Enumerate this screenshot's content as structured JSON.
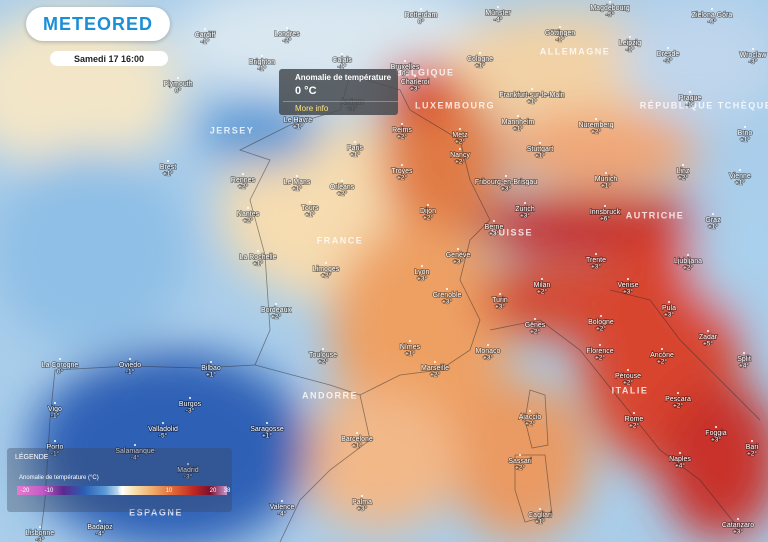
{
  "header": {
    "logo": "METEORED",
    "datetime": "Samedi 17 16:00"
  },
  "tooltip": {
    "title": "Anomalie de température",
    "value": "0 °C",
    "link": "More info"
  },
  "legend": {
    "title": "LÉGENDE",
    "subtitle": "Anomalie de température (°C)",
    "ticks": [
      "-20",
      "-10",
      "0",
      "10",
      "20",
      "38"
    ]
  },
  "countries": [
    "BELGIQUE",
    "LUXEMBOURG",
    "ALLEMAGNE",
    "RÉPUBLIQUE TCHÈQUE",
    "JERSEY",
    "FRANCE",
    "SUISSE",
    "AUTRICHE",
    "ANDORRE",
    "ITALIE",
    "ESPAGNE"
  ],
  "places": [
    {
      "name": "Cardiff",
      "value": "-1°"
    },
    {
      "name": "Londres",
      "value": "-2°"
    },
    {
      "name": "Brighton",
      "value": "-1°"
    },
    {
      "name": "Plymouth",
      "value": "0°"
    },
    {
      "name": "Calais",
      "value": "-1°"
    },
    {
      "name": "Bruxelles",
      "value": "0°"
    },
    {
      "name": "Rotterdam",
      "value": "0°"
    },
    {
      "name": "Münster",
      "value": "-4°"
    },
    {
      "name": "Magdebourg",
      "value": "-5°"
    },
    {
      "name": "Zielona Góra",
      "value": "-6°"
    },
    {
      "name": "Göttingen",
      "value": "-1°"
    },
    {
      "name": "Leipzig",
      "value": "-1°"
    },
    {
      "name": "Dresde",
      "value": "-2°"
    },
    {
      "name": "Wroclaw",
      "value": "-3°"
    },
    {
      "name": "Cologne",
      "value": "+1°"
    },
    {
      "name": "Charleroi",
      "value": "+3°"
    },
    {
      "name": "Amiens",
      "value": "+1°"
    },
    {
      "name": "Le Havre",
      "value": "+1°"
    },
    {
      "name": "Frankfurt-sur-le-Main",
      "value": "+1°"
    },
    {
      "name": "Metz",
      "value": "+2°"
    },
    {
      "name": "Mannheim",
      "value": "+1°"
    },
    {
      "name": "Nuremberg",
      "value": "+2°"
    },
    {
      "name": "Prague",
      "value": "-1°"
    },
    {
      "name": "Brno",
      "value": "+1°"
    },
    {
      "name": "Reims",
      "value": "+2°"
    },
    {
      "name": "Paris",
      "value": "+1°"
    },
    {
      "name": "Nancy",
      "value": "+2°"
    },
    {
      "name": "Stuttgart",
      "value": "+1°"
    },
    {
      "name": "Munich",
      "value": "+1°"
    },
    {
      "name": "Linz",
      "value": "+2°"
    },
    {
      "name": "Vienne",
      "value": "+1°"
    },
    {
      "name": "Brest",
      "value": "+1°"
    },
    {
      "name": "Rennes",
      "value": "+2°"
    },
    {
      "name": "Le Mans",
      "value": "+1°"
    },
    {
      "name": "Orléans",
      "value": "+2°"
    },
    {
      "name": "Troyes",
      "value": "+2°"
    },
    {
      "name": "Fribourg-en-Brisgau",
      "value": "+3°"
    },
    {
      "name": "Tours",
      "value": "+1°"
    },
    {
      "name": "Dijon",
      "value": "+2°"
    },
    {
      "name": "Zurich",
      "value": "+3°"
    },
    {
      "name": "Innsbruck",
      "value": "+6°"
    },
    {
      "name": "Graz",
      "value": "+1°"
    },
    {
      "name": "Nantes",
      "value": "+2°"
    },
    {
      "name": "Berne",
      "value": "+3°"
    },
    {
      "name": "La Rochelle",
      "value": "+1°"
    },
    {
      "name": "Limoges",
      "value": "+2°"
    },
    {
      "name": "Genève",
      "value": "+3°"
    },
    {
      "name": "Lyon",
      "value": "+3°"
    },
    {
      "name": "Trente",
      "value": "+3°"
    },
    {
      "name": "Ljubljana",
      "value": "+2°"
    },
    {
      "name": "Bordeaux",
      "value": "+2°"
    },
    {
      "name": "Grenoble",
      "value": "+3°"
    },
    {
      "name": "Turin",
      "value": "+3°"
    },
    {
      "name": "Milan",
      "value": "+2°"
    },
    {
      "name": "Venise",
      "value": "+3°"
    },
    {
      "name": "Pula",
      "value": "+3°"
    },
    {
      "name": "Zadar",
      "value": "+5°"
    },
    {
      "name": "Split",
      "value": "+4°"
    },
    {
      "name": "Bologne",
      "value": "+2°"
    },
    {
      "name": "Gênes",
      "value": "+2°"
    },
    {
      "name": "Toulouse",
      "value": "+2°"
    },
    {
      "name": "Nîmes",
      "value": "+1°"
    },
    {
      "name": "Monaco",
      "value": "+3°"
    },
    {
      "name": "Florence",
      "value": "+2°"
    },
    {
      "name": "Ancône",
      "value": "+2°"
    },
    {
      "name": "Marseille",
      "value": "+2°"
    },
    {
      "name": "Bilbao",
      "value": "+1°"
    },
    {
      "name": "La Corogne",
      "value": "0°"
    },
    {
      "name": "Oviedo",
      "value": "-1°"
    },
    {
      "name": "Pérouse",
      "value": "+2°"
    },
    {
      "name": "Pescara",
      "value": "+2°"
    },
    {
      "name": "Burgos",
      "value": "-3°"
    },
    {
      "name": "Vigo",
      "value": "-1°"
    },
    {
      "name": "Ajaccio",
      "value": "+2°"
    },
    {
      "name": "Rome",
      "value": "+2°"
    },
    {
      "name": "Valladolid",
      "value": "-5°"
    },
    {
      "name": "Saragosse",
      "value": "+1°"
    },
    {
      "name": "Barcelone",
      "value": "+1°"
    },
    {
      "name": "Foggia",
      "value": "+3°"
    },
    {
      "name": "Porto",
      "value": "-1°"
    },
    {
      "name": "Salamanque",
      "value": "-4°"
    },
    {
      "name": "Bari",
      "value": "+2°"
    },
    {
      "name": "Sassari",
      "value": "+2°"
    },
    {
      "name": "Naples",
      "value": "+4°"
    },
    {
      "name": "Madrid",
      "value": "-3°"
    },
    {
      "name": "Valence",
      "value": "-4°"
    },
    {
      "name": "Palma",
      "value": "+3°"
    },
    {
      "name": "Cagliari",
      "value": "+1°"
    },
    {
      "name": "Badajoz",
      "value": "-4°"
    },
    {
      "name": "Lisbonne",
      "value": "-3°"
    },
    {
      "name": "Catanzaro",
      "value": "+3°"
    }
  ]
}
